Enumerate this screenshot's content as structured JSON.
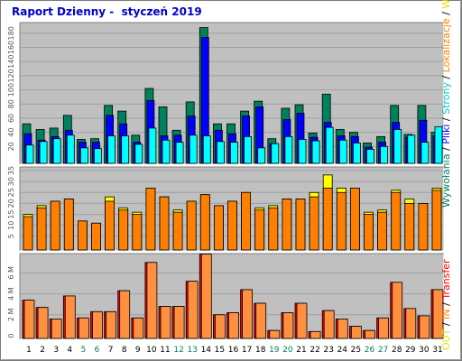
{
  "title": "Raport Dzienny -  styczeń 2019",
  "colors": {
    "panel_bg": "#c0c0c0",
    "grid": "#a0a0a0",
    "bar_edge": "#000000",
    "odwiedziny": "#00805c",
    "pliki": "#0000ff",
    "strony": "#00ffff",
    "wizyty": "#ffff00",
    "lokalizacje": "#ff8000",
    "in": "#ff8000",
    "out": "#ffff00",
    "transfer_back": "#ff0000",
    "transfer_front": "#ff9040",
    "weekend_day": "#00805c",
    "weekday_day": "#000000"
  },
  "chart_data": [
    {
      "type": "bar",
      "panel": "top",
      "x": [
        1,
        2,
        3,
        4,
        5,
        6,
        7,
        8,
        9,
        10,
        11,
        12,
        13,
        14,
        15,
        16,
        17,
        18,
        19,
        20,
        21,
        22,
        23,
        24,
        25,
        26,
        27,
        28,
        29,
        30,
        31
      ],
      "ylim": [
        0,
        190
      ],
      "y_ticks": [
        20,
        40,
        60,
        80,
        100,
        120,
        140,
        160,
        180
      ],
      "grid": true,
      "series": [
        {
          "name": "Wywołania",
          "values": [
            52,
            44,
            46,
            64,
            30,
            31,
            78,
            70,
            36,
            102,
            76,
            43,
            83,
            188,
            52,
            52,
            70,
            84,
            31,
            74,
            79,
            39,
            94,
            44,
            40,
            25,
            34,
            78,
            37,
            78,
            40
          ]
        },
        {
          "name": "Pliki",
          "values": [
            38,
            29,
            34,
            43,
            26,
            26,
            64,
            52,
            26,
            85,
            35,
            36,
            63,
            174,
            43,
            38,
            63,
            76,
            24,
            58,
            67,
            33,
            54,
            35,
            34,
            19,
            26,
            54,
            33,
            57,
            35
          ]
        },
        {
          "name": "Strony",
          "values": [
            22,
            27,
            31,
            36,
            18,
            17,
            35,
            35,
            23,
            46,
            29,
            26,
            36,
            35,
            27,
            26,
            34,
            18,
            24,
            34,
            30,
            28,
            47,
            29,
            25,
            16,
            20,
            44,
            36,
            26,
            48
          ]
        }
      ]
    },
    {
      "type": "bar",
      "panel": "middle",
      "x": [
        1,
        2,
        3,
        4,
        5,
        6,
        7,
        8,
        9,
        10,
        11,
        12,
        13,
        14,
        15,
        16,
        17,
        18,
        19,
        20,
        21,
        22,
        23,
        24,
        25,
        26,
        27,
        28,
        29,
        30,
        31
      ],
      "ylim": [
        0,
        35
      ],
      "y_ticks": [
        5,
        10,
        15,
        20,
        25,
        30,
        35
      ],
      "grid": true,
      "series": [
        {
          "name": "Wizyty",
          "values": [
            15,
            19,
            21,
            22,
            12,
            11,
            23,
            18,
            16,
            27,
            23,
            17,
            21,
            24,
            19,
            21,
            25,
            18,
            19,
            22,
            22,
            25,
            33,
            27,
            27,
            16,
            17,
            26,
            22,
            20,
            27
          ]
        },
        {
          "name": "Lokalizacje",
          "values": [
            14,
            18,
            21,
            22,
            12,
            11,
            21,
            17,
            15,
            27,
            23,
            16,
            21,
            24,
            19,
            21,
            25,
            17,
            18,
            22,
            22,
            23,
            27,
            25,
            27,
            15,
            16,
            25,
            20,
            20,
            26
          ]
        }
      ]
    },
    {
      "type": "bar",
      "panel": "bottom",
      "x": [
        1,
        2,
        3,
        4,
        5,
        6,
        7,
        8,
        9,
        10,
        11,
        12,
        13,
        14,
        15,
        16,
        17,
        18,
        19,
        20,
        21,
        22,
        23,
        24,
        25,
        26,
        27,
        28,
        29,
        30,
        31
      ],
      "ylim": [
        0,
        7.5
      ],
      "y_ticks": [
        0,
        2,
        4,
        6
      ],
      "y_tick_labels": [
        "0",
        "2 M",
        "4 M",
        "6 M"
      ],
      "grid": true,
      "series": [
        {
          "name": "IN",
          "values": [
            3.4,
            2.7,
            1.6,
            3.8,
            1.7,
            2.3,
            2.3,
            4.3,
            1.7,
            7.0,
            2.8,
            2.8,
            5.2,
            7.8,
            2.0,
            2.2,
            4.4,
            3.1,
            0.5,
            2.2,
            3.1,
            0.4,
            2.4,
            1.6,
            0.9,
            0.5,
            1.7,
            5.1,
            2.6,
            1.9,
            4.4
          ]
        },
        {
          "name": "OUT",
          "values": [
            3.4,
            2.7,
            1.6,
            3.8,
            1.7,
            2.3,
            2.3,
            4.3,
            1.7,
            7.0,
            2.8,
            2.8,
            5.2,
            7.8,
            2.0,
            2.2,
            4.4,
            3.1,
            0.5,
            2.2,
            3.1,
            0.4,
            2.4,
            1.6,
            0.9,
            0.5,
            1.7,
            5.1,
            2.6,
            1.9,
            4.4
          ]
        },
        {
          "name": "Transfer",
          "values": [
            3.4,
            2.7,
            1.6,
            3.8,
            1.7,
            2.3,
            2.3,
            4.3,
            1.7,
            7.0,
            2.8,
            2.8,
            5.2,
            7.8,
            2.0,
            2.2,
            4.4,
            3.1,
            0.5,
            2.2,
            3.1,
            0.4,
            2.4,
            1.6,
            0.9,
            0.5,
            1.7,
            5.1,
            2.6,
            1.9,
            4.4
          ]
        }
      ]
    }
  ],
  "weekend_days": [
    5,
    6,
    12,
    13,
    19,
    20,
    26,
    27
  ],
  "side_label": {
    "right_upper": {
      "parts": [
        {
          "text": "Wywołania",
          "color": "#00805c"
        },
        {
          "text": " / ",
          "color": "#000000"
        },
        {
          "text": "Pliki",
          "color": "#0000ff"
        },
        {
          "text": " / ",
          "color": "#000000"
        },
        {
          "text": "Strony",
          "color": "#00c8c8"
        },
        {
          "text": " / ",
          "color": "#000000"
        },
        {
          "text": "Lokalizacje",
          "color": "#ff8000"
        },
        {
          "text": " / ",
          "color": "#000000"
        },
        {
          "text": "Wizyty",
          "color": "#e0e000"
        }
      ]
    },
    "right_lower": {
      "parts": [
        {
          "text": "OUT",
          "color": "#e0e000"
        },
        {
          "text": " / ",
          "color": "#000000"
        },
        {
          "text": "IN",
          "color": "#ff8000"
        },
        {
          "text": " / ",
          "color": "#000000"
        },
        {
          "text": "Transfer",
          "color": "#ff0000"
        }
      ]
    }
  }
}
